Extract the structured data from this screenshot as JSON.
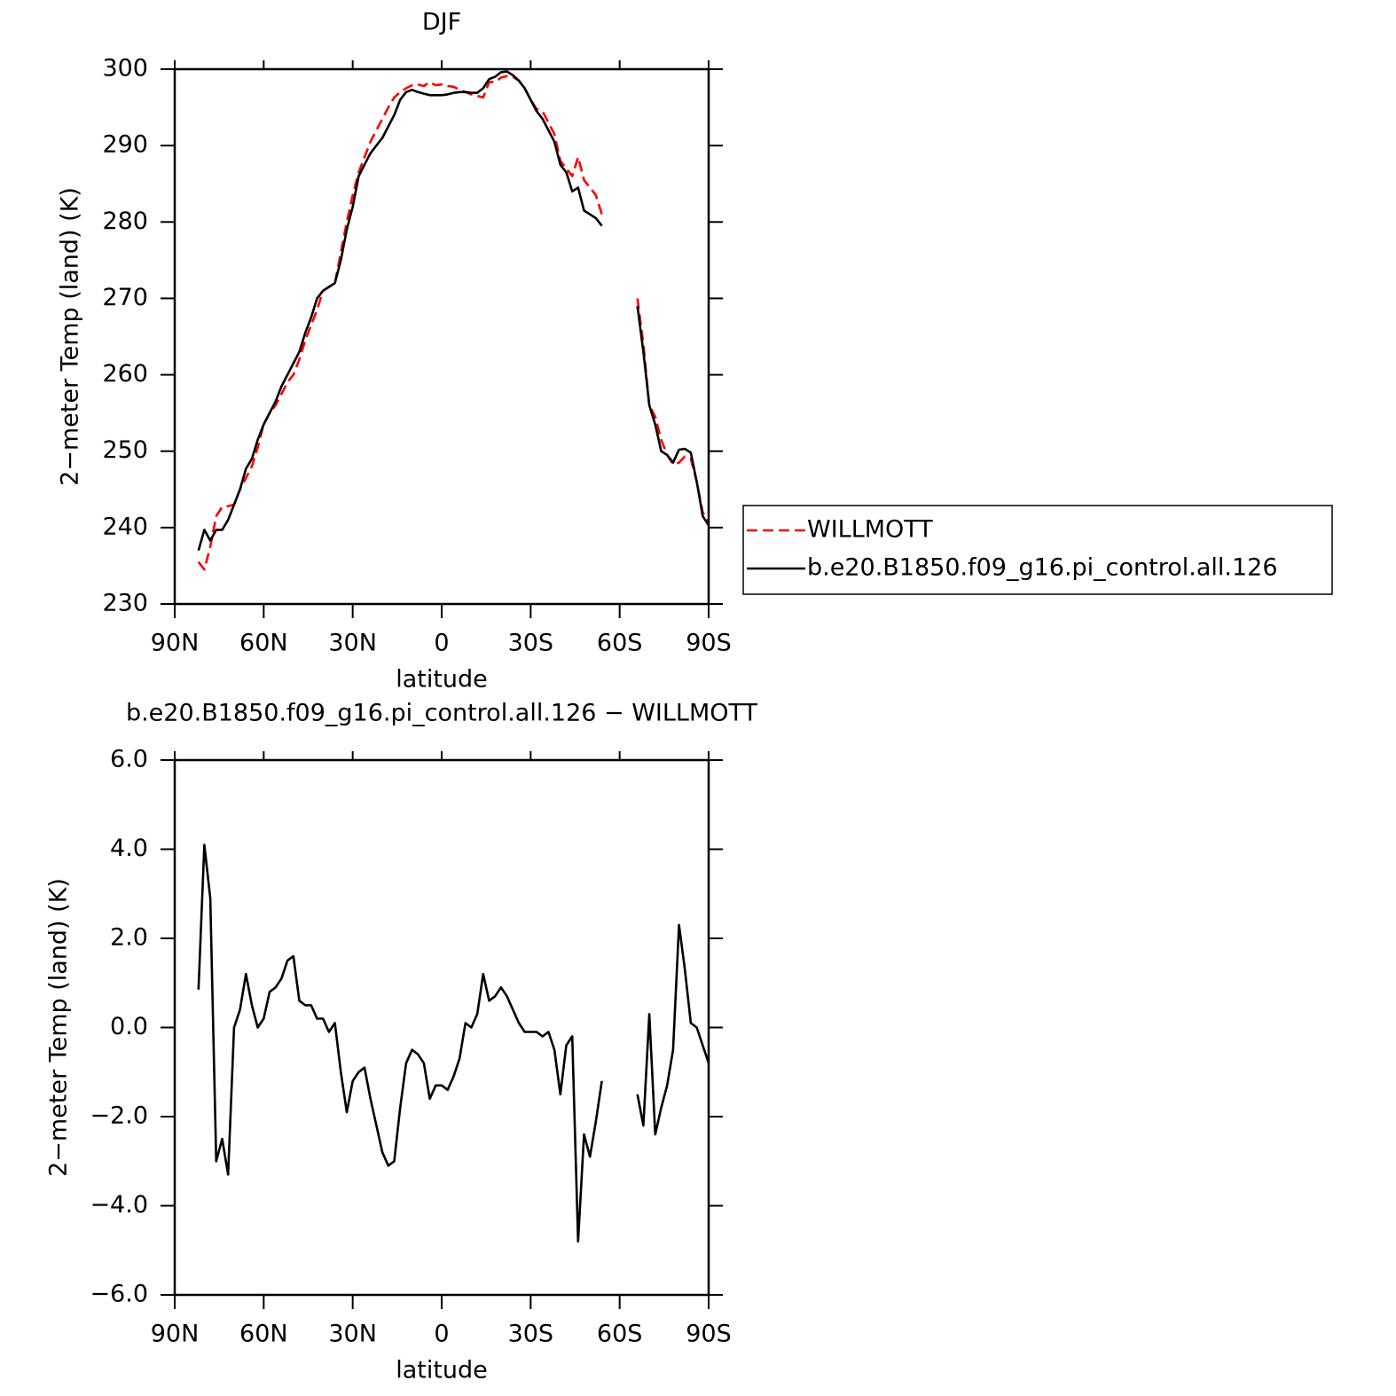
{
  "chart_data": [
    {
      "type": "line",
      "title": "DJF",
      "xlabel": "latitude",
      "ylabel": "2−meter Temp (land) (K)",
      "x": [
        82,
        80,
        78,
        76,
        74,
        72,
        70,
        68,
        66,
        64,
        62,
        60,
        58,
        56,
        54,
        52,
        50,
        48,
        46,
        44,
        42,
        40,
        38,
        36,
        34,
        32,
        30,
        28,
        26,
        24,
        22,
        20,
        18,
        16,
        14,
        12,
        10,
        8,
        6,
        4,
        2,
        0,
        -2,
        -4,
        -6,
        -8,
        -10,
        -12,
        -14,
        -16,
        -18,
        -20,
        -22,
        -24,
        -26,
        -28,
        -30,
        -32,
        -34,
        -36,
        -38,
        -40,
        -42,
        -44,
        -46,
        -48,
        -50,
        -52,
        -54,
        -56,
        -58,
        -60,
        -62,
        -64,
        -66,
        -68,
        -70,
        -72,
        -74,
        -76,
        -78,
        -80,
        -82,
        -84,
        -86,
        -88,
        -90
      ],
      "series": [
        {
          "name": "WILLMOTT",
          "color": "#ff0000",
          "linestyle": "dashed",
          "values": [
            235.5,
            234.5,
            237.5,
            241.5,
            242.7,
            242.8,
            243,
            245,
            246.5,
            248,
            250.5,
            253.5,
            255,
            256,
            257.5,
            259,
            260,
            262,
            264.5,
            266.5,
            268.5,
            271,
            271.5,
            272,
            276,
            280,
            283.5,
            286.5,
            288.5,
            290.5,
            292,
            293.5,
            295,
            296.3,
            297,
            297.5,
            297.9,
            298,
            297.8,
            298.3,
            297.9,
            298,
            297.8,
            297.7,
            297.3,
            297,
            296.7,
            296.5,
            296.3,
            298.3,
            298.3,
            298.9,
            299.1,
            299,
            298.5,
            297.5,
            296,
            294.8,
            294.5,
            293,
            291.5,
            288,
            287,
            286,
            288.5,
            285.5,
            284.5,
            283.5,
            281,
            null,
            null,
            null,
            null,
            null,
            270,
            264,
            256,
            254.5,
            251.5,
            249.5,
            248.3,
            248.5,
            249.3,
            249,
            246,
            242,
            240.7
          ]
        },
        {
          "name": "b.e20.B1850.f09_g16.pi_control.all.126",
          "color": "#000000",
          "linestyle": "solid",
          "values": [
            237,
            239.7,
            238.3,
            239.7,
            239.7,
            241,
            243,
            245,
            247.7,
            249,
            251.5,
            253.5,
            255,
            256.5,
            258.5,
            260,
            261.5,
            263,
            265.5,
            267.5,
            270,
            271,
            271.5,
            272,
            275,
            279,
            282,
            286,
            287.5,
            289,
            290,
            291,
            292.5,
            294,
            296,
            297,
            297.3,
            297,
            296.8,
            296.6,
            296.6,
            296.6,
            296.7,
            296.9,
            297,
            297,
            296.9,
            296.9,
            297.5,
            298.7,
            299,
            299.6,
            299.7,
            299.2,
            298.5,
            297.5,
            296,
            294.5,
            293.5,
            292,
            290.5,
            287.5,
            286.5,
            284,
            284.5,
            281.5,
            281,
            280.5,
            279.5,
            null,
            null,
            null,
            null,
            null,
            269,
            263,
            256,
            253.5,
            250,
            249.5,
            248.5,
            250.2,
            250.3,
            249.8,
            246,
            241.5,
            240.3
          ]
        }
      ],
      "xlim": [
        90,
        -90
      ],
      "xticks": [
        {
          "value": 90,
          "label": "90N"
        },
        {
          "value": 60,
          "label": "60N"
        },
        {
          "value": 30,
          "label": "30N"
        },
        0,
        {
          "value": -30,
          "label": "30S"
        },
        {
          "value": -60,
          "label": "60S"
        },
        {
          "value": -90,
          "label": "90S"
        }
      ],
      "ylim": [
        230,
        300
      ],
      "yticks": [
        230,
        240,
        250,
        260,
        270,
        280,
        290,
        300
      ],
      "legend": "outside right"
    },
    {
      "type": "line",
      "title": "b.e20.B1850.f09_g16.pi_control.all.126 − WILLMOTT",
      "xlabel": "latitude",
      "ylabel": "2−meter Temp (land) (K)",
      "x": [
        82,
        80,
        78,
        76,
        74,
        72,
        70,
        68,
        66,
        64,
        62,
        60,
        58,
        56,
        54,
        52,
        50,
        48,
        46,
        44,
        42,
        40,
        38,
        36,
        34,
        32,
        30,
        28,
        26,
        24,
        22,
        20,
        18,
        16,
        14,
        12,
        10,
        8,
        6,
        4,
        2,
        0,
        -2,
        -4,
        -6,
        -8,
        -10,
        -12,
        -14,
        -16,
        -18,
        -20,
        -22,
        -24,
        -26,
        -28,
        -30,
        -32,
        -34,
        -36,
        -38,
        -40,
        -42,
        -44,
        -46,
        -48,
        -50,
        -52,
        -54,
        -56,
        -58,
        -60,
        -62,
        -64,
        -66,
        -68,
        -70,
        -72,
        -74,
        -76,
        -78,
        -80,
        -82,
        -84,
        -86,
        -88,
        -90
      ],
      "series": [
        {
          "color": "#000000",
          "linestyle": "solid",
          "values": [
            0.85,
            4.1,
            2.9,
            -3.0,
            -2.5,
            -3.3,
            0.0,
            0.4,
            1.2,
            0.5,
            0.0,
            0.2,
            0.8,
            0.9,
            1.1,
            1.5,
            1.6,
            0.6,
            0.5,
            0.5,
            0.2,
            0.2,
            -0.1,
            0.1,
            -1.0,
            -1.9,
            -1.2,
            -1.0,
            -0.9,
            -1.6,
            -2.2,
            -2.8,
            -3.1,
            -3.0,
            -1.8,
            -0.8,
            -0.5,
            -0.6,
            -0.8,
            -1.6,
            -1.3,
            -1.3,
            -1.4,
            -1.1,
            -0.7,
            0.1,
            0.0,
            0.3,
            1.2,
            0.6,
            0.7,
            0.9,
            0.7,
            0.4,
            0.1,
            -0.1,
            -0.1,
            -0.1,
            -0.2,
            -0.1,
            -0.5,
            -1.5,
            -0.4,
            -0.2,
            -4.8,
            -2.4,
            -2.9,
            -2.1,
            -1.2,
            null,
            null,
            null,
            null,
            null,
            -1.5,
            -2.2,
            0.3,
            -2.4,
            -1.8,
            -1.3,
            -0.5,
            2.3,
            1.3,
            0.1,
            0.0,
            -0.4,
            -0.8
          ]
        }
      ],
      "xlim": [
        90,
        -90
      ],
      "xticks": [
        {
          "value": 90,
          "label": "90N"
        },
        {
          "value": 60,
          "label": "60N"
        },
        {
          "value": 30,
          "label": "30N"
        },
        0,
        {
          "value": -30,
          "label": "30S"
        },
        {
          "value": -60,
          "label": "60S"
        },
        {
          "value": -90,
          "label": "90S"
        }
      ],
      "ylim": [
        -6,
        6
      ],
      "yticks": [
        {
          "value": -6,
          "label": "−6.0"
        },
        {
          "value": -4,
          "label": "−4.0"
        },
        {
          "value": -2,
          "label": "−2.0"
        },
        {
          "value": 0,
          "label": "0.0"
        },
        {
          "value": 2,
          "label": "2.0"
        },
        {
          "value": 4,
          "label": "4.0"
        },
        {
          "value": 6,
          "label": "6.0"
        }
      ]
    }
  ]
}
